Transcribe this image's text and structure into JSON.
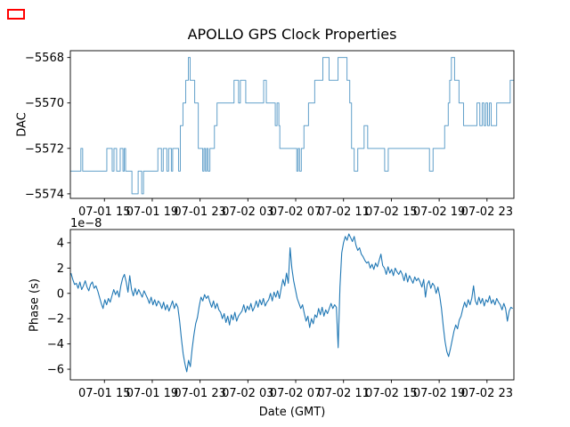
{
  "figure": {
    "title": "APOLLO GPS Clock Properties"
  },
  "overlay": {
    "marker_color": "#ff0000"
  },
  "chart_data": [
    {
      "type": "line",
      "subplot": "top",
      "ylabel": "DAC",
      "x_axis": {
        "lim": [
          0.15,
          37.25
        ],
        "unit": "hours since 07-01 12:00 GMT",
        "ticks": [
          3,
          7,
          11,
          15,
          19,
          23,
          27,
          31,
          35
        ],
        "tick_labels": [
          "07-01 15",
          "07-01 19",
          "07-01 23",
          "07-02 03",
          "07-02 07",
          "07-02 11",
          "07-02 15",
          "07-02 19",
          "07-02 23"
        ]
      },
      "y_axis": {
        "lim": [
          -5574.2,
          -5567.7
        ],
        "ticks": [
          -5568,
          -5570,
          -5572,
          -5574
        ],
        "tick_labels": [
          "−5568",
          "−5570",
          "−5572",
          "−5574"
        ]
      },
      "series": [
        {
          "name": "dac-steps",
          "style": "steps-post",
          "color": "#1f77b4",
          "opacity": 0.7,
          "width": 1.0,
          "points": [
            [
              0.15,
              -5573
            ],
            [
              1.03,
              -5572
            ],
            [
              1.18,
              -5573
            ],
            [
              3.2,
              -5572
            ],
            [
              3.65,
              -5573
            ],
            [
              3.8,
              -5572
            ],
            [
              4.02,
              -5573
            ],
            [
              4.32,
              -5572
            ],
            [
              4.55,
              -5573
            ],
            [
              4.66,
              -5572
            ],
            [
              4.77,
              -5573
            ],
            [
              5.3,
              -5574
            ],
            [
              5.82,
              -5573
            ],
            [
              6.12,
              -5574
            ],
            [
              6.27,
              -5573
            ],
            [
              7.47,
              -5572
            ],
            [
              7.77,
              -5573
            ],
            [
              7.92,
              -5572
            ],
            [
              8.22,
              -5573
            ],
            [
              8.37,
              -5572
            ],
            [
              8.6,
              -5573
            ],
            [
              8.71,
              -5572
            ],
            [
              9.2,
              -5573
            ],
            [
              9.35,
              -5571
            ],
            [
              9.57,
              -5570
            ],
            [
              9.8,
              -5569
            ],
            [
              10.02,
              -5568
            ],
            [
              10.17,
              -5569
            ],
            [
              10.55,
              -5570
            ],
            [
              10.85,
              -5572
            ],
            [
              11.22,
              -5573
            ],
            [
              11.33,
              -5572
            ],
            [
              11.45,
              -5573
            ],
            [
              11.56,
              -5572
            ],
            [
              11.67,
              -5573
            ],
            [
              11.82,
              -5572
            ],
            [
              12.2,
              -5571
            ],
            [
              12.42,
              -5570
            ],
            [
              13.84,
              -5569
            ],
            [
              14.22,
              -5570
            ],
            [
              14.37,
              -5569
            ],
            [
              14.82,
              -5570
            ],
            [
              16.32,
              -5569
            ],
            [
              16.54,
              -5570
            ],
            [
              17.29,
              -5571
            ],
            [
              17.44,
              -5570
            ],
            [
              17.59,
              -5571
            ],
            [
              17.67,
              -5572
            ],
            [
              19.09,
              -5573
            ],
            [
              19.2,
              -5572
            ],
            [
              19.32,
              -5573
            ],
            [
              19.47,
              -5572
            ],
            [
              19.69,
              -5571
            ],
            [
              20.07,
              -5570
            ],
            [
              20.59,
              -5569
            ],
            [
              21.27,
              -5568
            ],
            [
              21.79,
              -5569
            ],
            [
              22.54,
              -5568
            ],
            [
              23.29,
              -5569
            ],
            [
              23.52,
              -5570
            ],
            [
              23.67,
              -5572
            ],
            [
              23.89,
              -5573
            ],
            [
              24.19,
              -5572
            ],
            [
              24.72,
              -5571
            ],
            [
              25.02,
              -5572
            ],
            [
              26.44,
              -5573
            ],
            [
              26.74,
              -5572
            ],
            [
              30.19,
              -5573
            ],
            [
              30.49,
              -5572
            ],
            [
              31.46,
              -5571
            ],
            [
              31.76,
              -5570
            ],
            [
              31.88,
              -5569
            ],
            [
              32.02,
              -5568
            ],
            [
              32.29,
              -5569
            ],
            [
              32.66,
              -5570
            ],
            [
              33.04,
              -5571
            ],
            [
              34.16,
              -5570
            ],
            [
              34.4,
              -5571
            ],
            [
              34.6,
              -5570
            ],
            [
              34.75,
              -5571
            ],
            [
              34.9,
              -5570
            ],
            [
              35.05,
              -5571
            ],
            [
              35.2,
              -5570
            ],
            [
              35.35,
              -5571
            ],
            [
              35.81,
              -5570
            ],
            [
              36.94,
              -5569
            ]
          ]
        }
      ]
    },
    {
      "type": "line",
      "subplot": "bottom",
      "ylabel": "Phase (s)",
      "xlabel": "Date (GMT)",
      "offset_text": "1e−8",
      "y_unit": "1e-8 s",
      "x_axis": {
        "lim": [
          0.15,
          37.25
        ],
        "unit": "hours since 07-01 12:00 GMT",
        "ticks": [
          3,
          7,
          11,
          15,
          19,
          23,
          27,
          31,
          35
        ],
        "tick_labels": [
          "07-01 15",
          "07-01 19",
          "07-01 23",
          "07-02 03",
          "07-02 07",
          "07-02 11",
          "07-02 15",
          "07-02 19",
          "07-02 23"
        ]
      },
      "y_axis": {
        "lim": [
          -6.84,
          5.05
        ],
        "ticks": [
          4,
          2,
          0,
          -2,
          -4,
          -6
        ],
        "tick_labels": [
          "4",
          "2",
          "0",
          "−2",
          "−4",
          "−6"
        ]
      },
      "series": [
        {
          "name": "phase",
          "style": "line",
          "color": "#1f77b4",
          "opacity": 1,
          "width": 1.1,
          "x_start": 0.2,
          "x_step": 0.149,
          "values": [
            1.6,
            1.1,
            0.7,
            0.8,
            0.4,
            0.9,
            0.3,
            0.6,
            1.0,
            0.5,
            0.2,
            0.7,
            0.9,
            0.4,
            0.6,
            0.2,
            -0.3,
            -0.8,
            -1.2,
            -0.5,
            -0.9,
            -0.4,
            -0.7,
            -0.2,
            0.3,
            -0.1,
            0.2,
            -0.3,
            0.6,
            1.2,
            1.5,
            0.9,
            0.1,
            1.4,
            0.3,
            -0.2,
            0.4,
            -0.1,
            0.3,
            0.0,
            -0.3,
            0.2,
            -0.1,
            -0.4,
            -0.8,
            -0.3,
            -0.9,
            -0.5,
            -1.0,
            -0.6,
            -0.8,
            -1.2,
            -0.7,
            -1.3,
            -0.9,
            -1.4,
            -1.0,
            -0.6,
            -1.2,
            -0.8,
            -1.1,
            -2.2,
            -3.6,
            -4.8,
            -5.6,
            -6.2,
            -5.3,
            -5.8,
            -4.4,
            -3.3,
            -2.4,
            -1.9,
            -1.0,
            -0.3,
            -0.6,
            -0.1,
            -0.4,
            -0.2,
            -0.7,
            -1.1,
            -0.6,
            -1.2,
            -0.8,
            -1.3,
            -1.5,
            -2.0,
            -1.6,
            -2.3,
            -1.8,
            -2.5,
            -1.7,
            -2.1,
            -1.5,
            -2.2,
            -1.8,
            -1.6,
            -1.4,
            -0.9,
            -1.5,
            -1.0,
            -1.3,
            -0.8,
            -1.4,
            -1.1,
            -0.6,
            -1.1,
            -0.5,
            -0.9,
            -0.4,
            -1.0,
            -0.7,
            -0.5,
            0.0,
            -0.6,
            0.1,
            -0.3,
            0.2,
            -0.4,
            0.4,
            1.1,
            0.6,
            1.6,
            0.8,
            3.6,
            2.0,
            1.0,
            0.3,
            -0.4,
            -0.8,
            -1.2,
            -0.9,
            -1.6,
            -2.2,
            -1.8,
            -2.7,
            -2.0,
            -2.4,
            -1.7,
            -1.9,
            -1.2,
            -1.7,
            -1.1,
            -1.8,
            -1.3,
            -1.6,
            -1.2,
            -0.8,
            -1.2,
            -0.9,
            -1.1,
            -4.3,
            0.5,
            3.2,
            4.0,
            4.5,
            4.2,
            4.7,
            4.4,
            4.1,
            4.5,
            3.8,
            3.4,
            3.6,
            3.1,
            2.9,
            2.6,
            2.4,
            2.5,
            2.0,
            2.3,
            1.9,
            2.4,
            2.1,
            2.6,
            3.1,
            2.2,
            2.0,
            1.5,
            2.1,
            1.6,
            1.9,
            1.4,
            2.0,
            1.7,
            1.5,
            1.8,
            1.5,
            1.0,
            1.6,
            0.9,
            1.4,
            1.1,
            0.8,
            1.3,
            1.0,
            1.2,
            0.9,
            0.5,
            1.1,
            -0.3,
            0.7,
            1.0,
            0.4,
            0.8,
            0.6,
            0.0,
            0.5,
            -0.2,
            -1.2,
            -2.6,
            -3.8,
            -4.6,
            -5.0,
            -4.4,
            -3.7,
            -3.0,
            -2.5,
            -2.8,
            -2.1,
            -1.8,
            -1.2,
            -0.7,
            -1.1,
            -0.5,
            -0.9,
            -0.4,
            0.6,
            -0.6,
            -0.9,
            -0.3,
            -0.8,
            -0.4,
            -1.0,
            -0.5,
            -0.7,
            -0.2,
            -0.8,
            -0.5,
            -0.9,
            -0.4,
            -0.7,
            -0.9,
            -1.3,
            -0.8,
            -1.2,
            -2.2,
            -1.4,
            -1.1,
            -1.2
          ]
        }
      ]
    }
  ]
}
